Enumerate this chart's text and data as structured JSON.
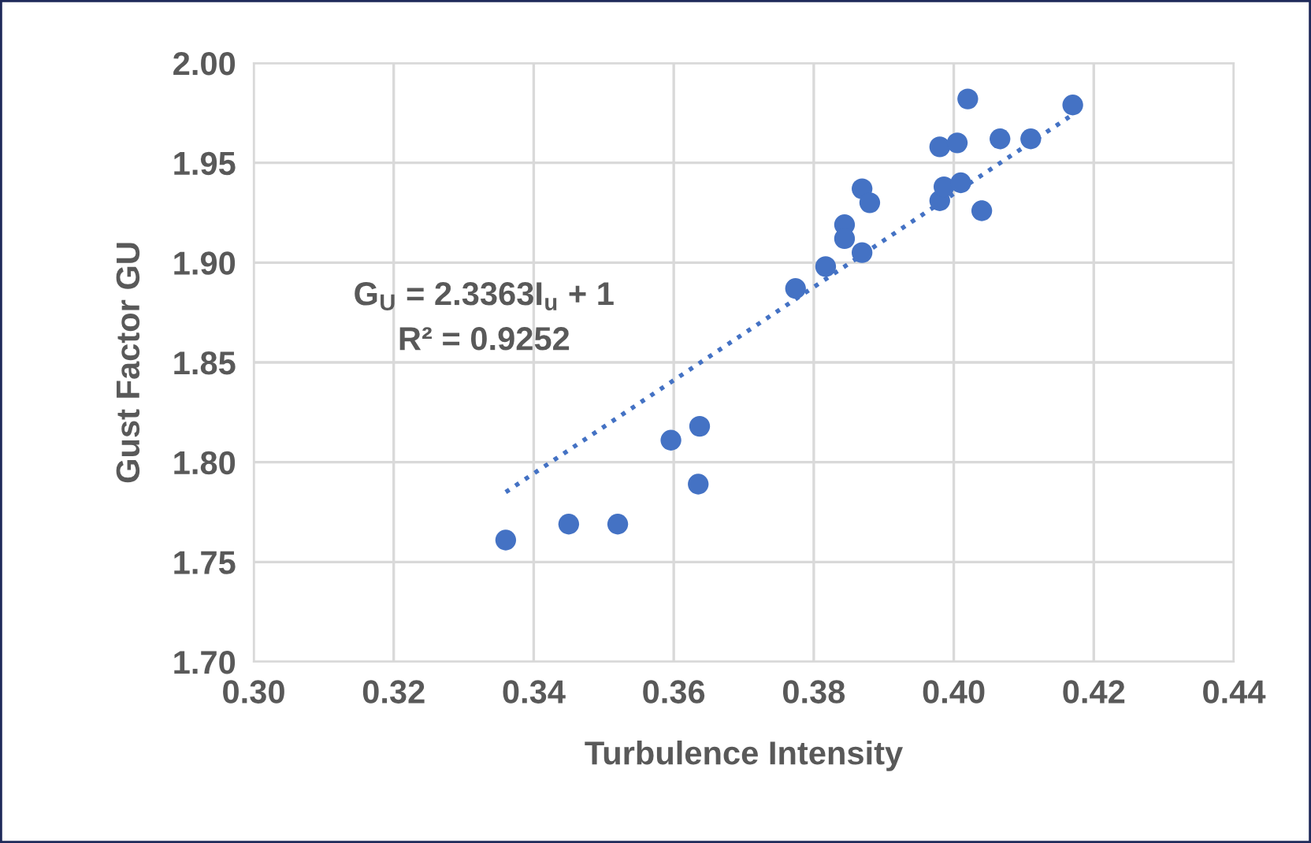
{
  "chart_data": {
    "type": "scatter",
    "xlabel": "Turbulence Intensity",
    "ylabel": "Gust Factor GU",
    "xlim": [
      0.3,
      0.44
    ],
    "xticks": [
      {
        "value": 0.3,
        "label": "0.30"
      },
      {
        "value": 0.32,
        "label": "0.32"
      },
      {
        "value": 0.34,
        "label": "0.34"
      },
      {
        "value": 0.36,
        "label": "0.36"
      },
      {
        "value": 0.38,
        "label": "0.38"
      },
      {
        "value": 0.4,
        "label": "0.40"
      },
      {
        "value": 0.42,
        "label": "0.42"
      },
      {
        "value": 0.44,
        "label": "0.44"
      }
    ],
    "ylim": [
      1.7,
      2.0
    ],
    "yticks": [
      {
        "value": 1.7,
        "label": "1.70"
      },
      {
        "value": 1.75,
        "label": "1.75"
      },
      {
        "value": 1.8,
        "label": "1.80"
      },
      {
        "value": 1.85,
        "label": "1.85"
      },
      {
        "value": 1.9,
        "label": "1.90"
      },
      {
        "value": 1.95,
        "label": "1.95"
      },
      {
        "value": 2.0,
        "label": "2.00"
      }
    ],
    "grid": true,
    "legend": false,
    "series": [
      {
        "marker": "circle",
        "color": "#4472c4",
        "x": [
          0.336,
          0.345,
          0.352,
          0.3596,
          0.3637,
          0.3635,
          0.3774,
          0.3817,
          0.3844,
          0.3844,
          0.3869,
          0.3869,
          0.388,
          0.398,
          0.4005,
          0.402,
          0.398,
          0.3986,
          0.4,
          0.401,
          0.404,
          0.4066,
          0.411,
          0.417
        ],
        "values": [
          1.761,
          1.769,
          1.769,
          1.811,
          1.818,
          1.789,
          1.887,
          1.898,
          1.919,
          1.912,
          1.937,
          1.905,
          1.93,
          1.958,
          1.96,
          1.982,
          1.931,
          1.938,
          null,
          1.94,
          1.926,
          1.962,
          1.962,
          1.979
        ]
      },
      {
        "type": "line",
        "marker": "none",
        "color": "#4472c4",
        "line_style": "dotted",
        "x": [
          0.336,
          0.4165
        ],
        "values": [
          1.785,
          1.973
        ]
      }
    ],
    "annotations": [
      "G$_{U}$ = 2.3363I$_{u}$ + 1",
      "R² = 0.9252"
    ]
  }
}
